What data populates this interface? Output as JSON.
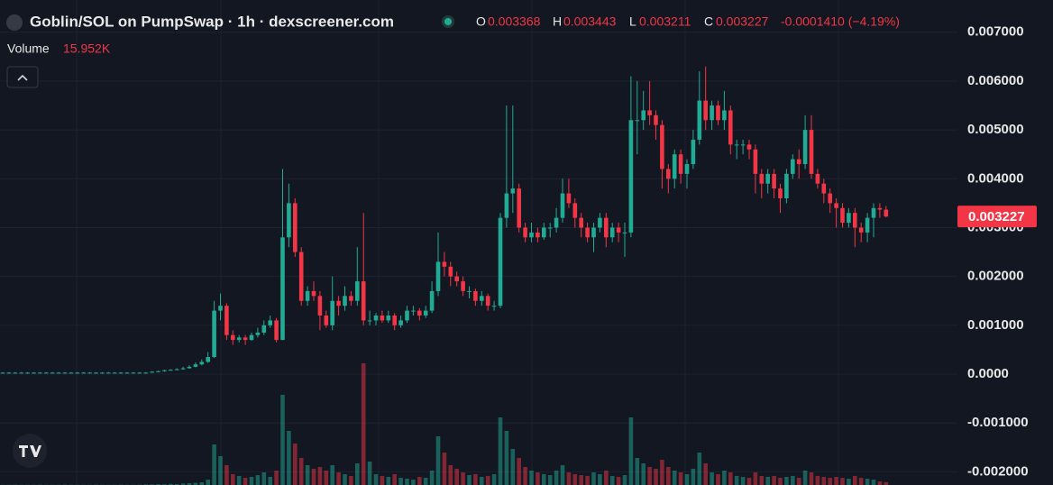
{
  "header": {
    "title": "Goblin/SOL on PumpSwap · 1h · dexscreener.com",
    "ohlc": [
      {
        "key": "O",
        "value": 0.003368
      },
      {
        "key": "H",
        "value": 0.003443
      },
      {
        "key": "L",
        "value": 0.003211
      },
      {
        "key": "C",
        "value": 0.003227
      }
    ],
    "change": "-0.0001410 (−4.19%)",
    "volume_label": "Volume",
    "volume_value": "15.952K"
  },
  "chart_data": {
    "type": "candlestick",
    "up_color": "#22ab94",
    "down_color": "#f23645",
    "ylim": [
      -0.00227,
      0.00766
    ],
    "yticks": [
      {
        "value": 0.007,
        "label": "0.007000"
      },
      {
        "value": 0.006,
        "label": "0.006000"
      },
      {
        "value": 0.005,
        "label": "0.005000"
      },
      {
        "value": 0.004,
        "label": "0.004000"
      },
      {
        "value": 0.003,
        "label": "0.003000"
      },
      {
        "value": 0.002,
        "label": "0.002000"
      },
      {
        "value": 0.001,
        "label": "0.001000"
      },
      {
        "value": 0,
        "label": "0.0000"
      },
      {
        "value": -0.001,
        "label": "-0.001000"
      },
      {
        "value": -0.002,
        "label": "-0.002000"
      }
    ],
    "grid": true,
    "last_price": 0.003227,
    "volume_lim": [
      0,
      700000
    ],
    "open": [
      3e-05,
      3e-05,
      3e-05,
      3e-05,
      3e-05,
      3e-05,
      3e-05,
      3e-05,
      3e-05,
      3e-05,
      3e-05,
      3e-05,
      3e-05,
      3e-05,
      3e-05,
      3e-05,
      3e-05,
      3e-05,
      3e-05,
      3e-05,
      3e-05,
      3e-05,
      3e-05,
      3e-05,
      3e-05,
      5e-05,
      6e-05,
      8e-05,
      9e-05,
      0.0001,
      0.00012,
      0.00015,
      0.0002,
      0.00025,
      0.00035,
      0.0013,
      0.0014,
      0.0008,
      0.0007,
      0.00075,
      0.0007,
      0.0008,
      0.00085,
      0.001,
      0.0011,
      0.0007,
      0.0028,
      0.0035,
      0.0025,
      0.0015,
      0.0017,
      0.0016,
      0.0012,
      0.001,
      0.0015,
      0.0014,
      0.0016,
      0.0015,
      0.0019,
      0.0011,
      0.0011,
      0.0012,
      0.0011,
      0.0012,
      0.001,
      0.0011,
      0.0013,
      0.0013,
      0.0012,
      0.0013,
      0.0017,
      0.0023,
      0.0022,
      0.002,
      0.0019,
      0.0017,
      0.0017,
      0.0015,
      0.0016,
      0.0014,
      0.0014,
      0.0032,
      0.0037,
      0.0038,
      0.003,
      0.0028,
      0.0029,
      0.0028,
      0.003,
      0.003,
      0.0032,
      0.0037,
      0.0035,
      0.0032,
      0.003,
      0.0028,
      0.003,
      0.0032,
      0.0028,
      0.003,
      0.0029,
      0.0029,
      0.0052,
      0.0052,
      0.0054,
      0.0053,
      0.0051,
      0.0042,
      0.004,
      0.0045,
      0.0041,
      0.0043,
      0.0048,
      0.0056,
      0.0052,
      0.0055,
      0.0052,
      0.0054,
      0.0047,
      0.0047,
      0.0047,
      0.0046,
      0.0041,
      0.0039,
      0.0041,
      0.0038,
      0.0036,
      0.0041,
      0.0044,
      0.0043,
      0.005,
      0.0041,
      0.0039,
      0.0037,
      0.0035,
      0.0034,
      0.0031,
      0.0033,
      0.003,
      0.0029,
      0.0032,
      0.0034,
      0.003368
    ],
    "high": [
      4e-05,
      4e-05,
      4e-05,
      4e-05,
      4e-05,
      4e-05,
      4e-05,
      4e-05,
      4e-05,
      4e-05,
      4e-05,
      4e-05,
      4e-05,
      4e-05,
      4e-05,
      4e-05,
      4e-05,
      4e-05,
      4e-05,
      4e-05,
      4e-05,
      4e-05,
      4e-05,
      4e-05,
      6e-05,
      7e-05,
      9e-05,
      0.0001,
      0.00012,
      0.00015,
      0.00018,
      0.00024,
      0.0003,
      0.00045,
      0.0015,
      0.00165,
      0.00145,
      0.0009,
      0.0008,
      0.0008,
      0.00085,
      0.00095,
      0.0011,
      0.0012,
      0.00115,
      0.0042,
      0.0039,
      0.0036,
      0.0026,
      0.0018,
      0.0019,
      0.0017,
      0.0013,
      0.002,
      0.0016,
      0.0018,
      0.0017,
      0.0026,
      0.0033,
      0.0013,
      0.00125,
      0.0013,
      0.0013,
      0.00125,
      0.0012,
      0.0014,
      0.0014,
      0.00135,
      0.0014,
      0.0019,
      0.0029,
      0.0025,
      0.0023,
      0.0021,
      0.002,
      0.0018,
      0.00175,
      0.0017,
      0.00165,
      0.0015,
      0.0033,
      0.0055,
      0.0055,
      0.0039,
      0.0031,
      0.0031,
      0.003,
      0.0031,
      0.0031,
      0.0034,
      0.004,
      0.004,
      0.0036,
      0.0033,
      0.0031,
      0.0031,
      0.0033,
      0.0033,
      0.0031,
      0.0031,
      0.0031,
      0.0061,
      0.006,
      0.0058,
      0.006,
      0.0054,
      0.0052,
      0.0043,
      0.0046,
      0.0046,
      0.0044,
      0.005,
      0.0062,
      0.0063,
      0.0056,
      0.0056,
      0.0058,
      0.0055,
      0.0048,
      0.0048,
      0.0048,
      0.0047,
      0.0042,
      0.0042,
      0.0042,
      0.0039,
      0.0042,
      0.0045,
      0.0046,
      0.0053,
      0.0053,
      0.0042,
      0.004,
      0.0038,
      0.0036,
      0.0035,
      0.0034,
      0.0034,
      0.0031,
      0.0033,
      0.0035,
      0.0035,
      0.003443
    ],
    "low": [
      2e-05,
      2e-05,
      2e-05,
      2e-05,
      2e-05,
      2e-05,
      2e-05,
      2e-05,
      2e-05,
      2e-05,
      2e-05,
      2e-05,
      2e-05,
      2e-05,
      2e-05,
      2e-05,
      2e-05,
      2e-05,
      2e-05,
      2e-05,
      2e-05,
      2e-05,
      2e-05,
      2e-05,
      3e-05,
      4e-05,
      5e-05,
      7e-05,
      8e-05,
      9e-05,
      0.00011,
      0.00014,
      0.00018,
      0.00023,
      0.00033,
      0.0011,
      0.0007,
      0.0006,
      0.00065,
      0.0006,
      0.00068,
      0.00075,
      0.0008,
      0.00095,
      0.00065,
      0.0007,
      0.0026,
      0.0024,
      0.0014,
      0.0014,
      0.0015,
      0.0009,
      0.00095,
      0.0009,
      0.0012,
      0.0013,
      0.0014,
      0.0014,
      0.001,
      0.001,
      0.001,
      0.00105,
      0.00105,
      0.0009,
      0.00095,
      0.00105,
      0.0012,
      0.0011,
      0.00115,
      0.00125,
      0.0016,
      0.002,
      0.0018,
      0.0018,
      0.0016,
      0.00155,
      0.0014,
      0.0014,
      0.0013,
      0.0013,
      0.00135,
      0.003,
      0.0033,
      0.0029,
      0.0027,
      0.0027,
      0.0027,
      0.00275,
      0.0028,
      0.0029,
      0.0031,
      0.0034,
      0.003,
      0.0028,
      0.0027,
      0.0025,
      0.0029,
      0.0026,
      0.0027,
      0.0027,
      0.0024,
      0.0028,
      0.0045,
      0.005,
      0.0051,
      0.0048,
      0.0038,
      0.0037,
      0.0038,
      0.0039,
      0.0038,
      0.0042,
      0.0047,
      0.005,
      0.005,
      0.0051,
      0.005,
      0.0045,
      0.0044,
      0.0045,
      0.0044,
      0.0037,
      0.0036,
      0.0037,
      0.0036,
      0.0033,
      0.0035,
      0.004,
      0.004,
      0.0042,
      0.004,
      0.0038,
      0.0035,
      0.0033,
      0.003,
      0.003,
      0.003,
      0.0026,
      0.0027,
      0.0027,
      0.0028,
      0.0032,
      0.003211
    ],
    "close": [
      3e-05,
      3e-05,
      3e-05,
      3e-05,
      3e-05,
      3e-05,
      3e-05,
      3e-05,
      3e-05,
      3e-05,
      3e-05,
      3e-05,
      3e-05,
      3e-05,
      3e-05,
      3e-05,
      3e-05,
      3e-05,
      3e-05,
      3e-05,
      3e-05,
      3e-05,
      3e-05,
      3e-05,
      5e-05,
      6e-05,
      8e-05,
      9e-05,
      0.0001,
      0.00012,
      0.00015,
      0.0002,
      0.00025,
      0.00035,
      0.0013,
      0.0014,
      0.0008,
      0.0007,
      0.00075,
      0.0007,
      0.0008,
      0.00085,
      0.001,
      0.0011,
      0.0007,
      0.0028,
      0.0035,
      0.0025,
      0.0015,
      0.0017,
      0.0016,
      0.0012,
      0.001,
      0.0015,
      0.0014,
      0.0016,
      0.0015,
      0.0019,
      0.0011,
      0.0011,
      0.0012,
      0.0011,
      0.0012,
      0.001,
      0.0011,
      0.0013,
      0.0013,
      0.0012,
      0.0013,
      0.0017,
      0.0023,
      0.0022,
      0.002,
      0.0019,
      0.0017,
      0.0017,
      0.0015,
      0.0016,
      0.0014,
      0.0014,
      0.0032,
      0.0037,
      0.0038,
      0.003,
      0.0028,
      0.0029,
      0.0028,
      0.003,
      0.003,
      0.0032,
      0.0037,
      0.0035,
      0.0032,
      0.003,
      0.0028,
      0.003,
      0.0032,
      0.0028,
      0.003,
      0.0029,
      0.0029,
      0.0052,
      0.0052,
      0.0054,
      0.0053,
      0.0051,
      0.0042,
      0.004,
      0.0045,
      0.0041,
      0.0043,
      0.0048,
      0.0056,
      0.0052,
      0.0055,
      0.0052,
      0.0054,
      0.0047,
      0.0047,
      0.0047,
      0.0046,
      0.0041,
      0.0039,
      0.0041,
      0.0038,
      0.0036,
      0.0041,
      0.0044,
      0.0043,
      0.005,
      0.0041,
      0.0039,
      0.0037,
      0.0035,
      0.0034,
      0.0031,
      0.0033,
      0.003,
      0.0029,
      0.0032,
      0.0034,
      0.003368,
      0.003227
    ],
    "volume": [
      1000,
      1000,
      2000,
      1000,
      1000,
      1000,
      2000,
      1000,
      1000,
      1000,
      2000,
      1000,
      1000,
      1000,
      1000,
      2000,
      1000,
      1000,
      1000,
      2000,
      1000,
      1000,
      2000,
      3000,
      3000,
      5000,
      4000,
      6000,
      5000,
      8000,
      10000,
      12000,
      15000,
      30000,
      225000,
      160000,
      110000,
      60000,
      50000,
      40000,
      45000,
      55000,
      70000,
      45000,
      80000,
      500000,
      300000,
      230000,
      150000,
      110000,
      90000,
      100000,
      80000,
      110000,
      70000,
      60000,
      50000,
      120000,
      675000,
      130000,
      60000,
      50000,
      45000,
      60000,
      40000,
      35000,
      30000,
      45000,
      40000,
      80000,
      270000,
      180000,
      110000,
      90000,
      70000,
      55000,
      60000,
      45000,
      50000,
      60000,
      375000,
      300000,
      200000,
      150000,
      100000,
      80000,
      70000,
      60000,
      55000,
      80000,
      110000,
      70000,
      60000,
      55000,
      50000,
      70000,
      60000,
      80000,
      50000,
      45000,
      55000,
      375000,
      150000,
      120000,
      100000,
      90000,
      140000,
      100000,
      80000,
      70000,
      60000,
      90000,
      180000,
      120000,
      70000,
      60000,
      80000,
      70000,
      50000,
      45000,
      40000,
      70000,
      50000,
      45000,
      50000,
      40000,
      45000,
      50000,
      40000,
      80000,
      70000,
      50000,
      45000,
      40000,
      45000,
      40000,
      35000,
      50000,
      40000,
      35000,
      30000,
      20000,
      15952
    ]
  }
}
